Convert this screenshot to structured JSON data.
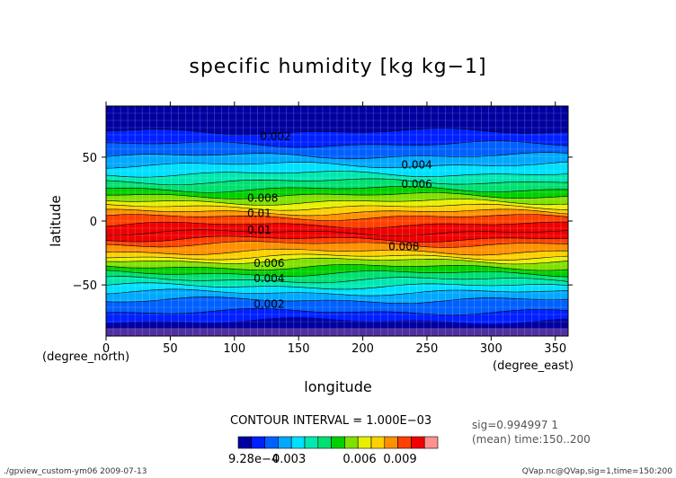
{
  "chart_data": {
    "type": "heatmap",
    "title": "specific humidity [kg kg−1]",
    "xlabel": "longitude",
    "ylabel": "latitude",
    "x_unit": "(degree_east)",
    "y_unit": "(degree_north)",
    "xlim": [
      0,
      360
    ],
    "ylim": [
      -90,
      90
    ],
    "x_ticks": [
      0,
      50,
      100,
      150,
      200,
      250,
      300,
      350
    ],
    "y_ticks": [
      50,
      0,
      -50
    ],
    "contour_interval_text": "CONTOUR INTERVAL = 1.000E−03",
    "contour_labels": [
      {
        "text": "0.002",
        "x": 120,
        "y": 66
      },
      {
        "text": "0.004",
        "x": 230,
        "y": 44
      },
      {
        "text": "0.006",
        "x": 230,
        "y": 29
      },
      {
        "text": "0.008",
        "x": 110,
        "y": 18
      },
      {
        "text": "0.01",
        "x": 110,
        "y": 6
      },
      {
        "text": "0.01",
        "x": 110,
        "y": -7
      },
      {
        "text": "0.008",
        "x": 220,
        "y": -20
      },
      {
        "text": "0.006",
        "x": 115,
        "y": -33
      },
      {
        "text": "0.004",
        "x": 115,
        "y": -45
      },
      {
        "text": "0.002",
        "x": 115,
        "y": -65
      }
    ],
    "colorbar": {
      "colors": [
        "#0000a0",
        "#0020ff",
        "#0060ff",
        "#00a8ff",
        "#00e0ff",
        "#00e8b0",
        "#00e070",
        "#00d000",
        "#80e000",
        "#e8f000",
        "#ffd000",
        "#ff9000",
        "#ff4000",
        "#f00000",
        "#ff9090"
      ],
      "labels": [
        "9.28e−4",
        "0.003",
        "0.006",
        "0.009"
      ]
    },
    "grid": true
  },
  "info": {
    "sig": "sig=0.994997 1",
    "mean": "(mean) time:150..200"
  },
  "footer": {
    "left": "./gpview_custom-ym06  2009-07-13",
    "right": "QVap.nc@QVap,sig=1,time=150:200"
  }
}
